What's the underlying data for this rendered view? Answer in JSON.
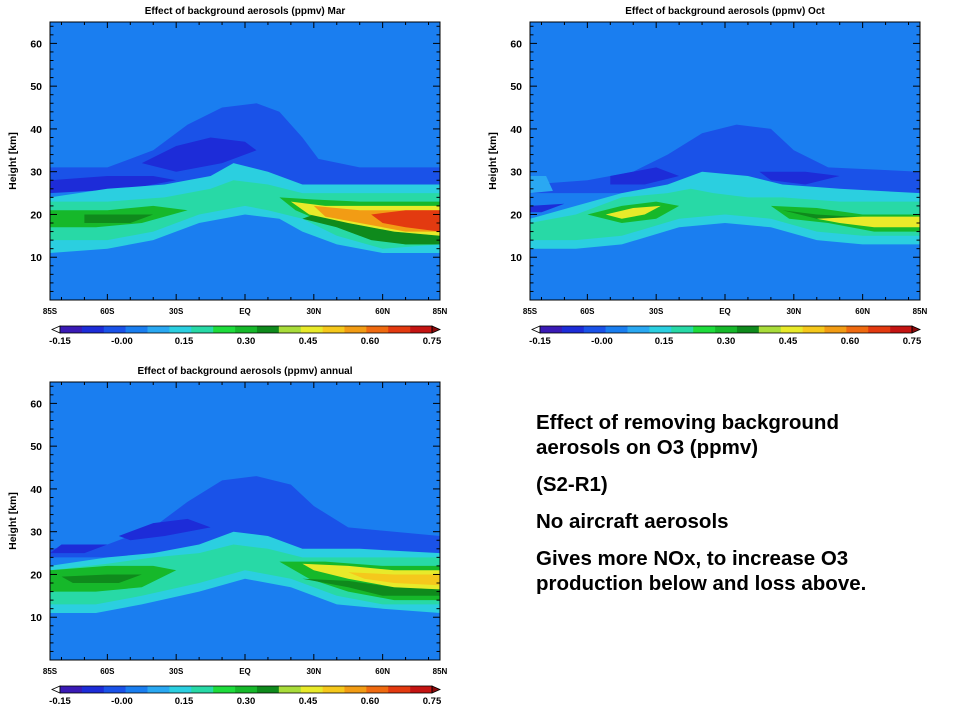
{
  "chart_data": [
    {
      "type": "heatmap",
      "id": "mar",
      "title": "Effect of background aerosols (ppmv) Mar",
      "ylabel": "Height [km]",
      "xlabel": "",
      "x_ticks": [
        "85S",
        "60S",
        "30S",
        "EQ",
        "30N",
        "60N",
        "85N"
      ],
      "y_ticks": [
        "10",
        "20",
        "30",
        "40",
        "50",
        "60"
      ],
      "ylim": [
        0,
        65
      ],
      "xlim": [
        -85,
        85
      ],
      "colorbar": {
        "ticks": [
          "-0.15",
          "-0.00",
          "0.15",
          "0.30",
          "0.45",
          "0.60",
          "0.75"
        ],
        "range": [
          -0.15,
          0.75
        ]
      },
      "features": [
        {
          "region": "upper negative dome",
          "lat": [
            -85,
            85
          ],
          "height": [
            27,
            46
          ],
          "value": -0.05
        },
        {
          "region": "mid-level minimum",
          "lat": [
            -40,
            5
          ],
          "height": [
            30,
            38
          ],
          "value": -0.1
        },
        {
          "region": "southern high-latitude minimum",
          "lat": [
            -85,
            -50
          ],
          "height": [
            22,
            28
          ],
          "value": -0.12
        },
        {
          "region": "lower-stratosphere positive band",
          "lat": [
            -85,
            85
          ],
          "height": [
            10,
            27
          ],
          "value": 0.3
        },
        {
          "region": "northern mid-latitude maximum",
          "lat": [
            30,
            85
          ],
          "height": [
            14,
            24
          ],
          "value": 0.65
        }
      ]
    },
    {
      "type": "heatmap",
      "id": "oct",
      "title": "Effect of background aerosols (ppmv) Oct",
      "ylabel": "Height [km]",
      "xlabel": "",
      "x_ticks": [
        "85S",
        "60S",
        "30S",
        "EQ",
        "30N",
        "60N",
        "85N"
      ],
      "y_ticks": [
        "10",
        "20",
        "30",
        "40",
        "50",
        "60"
      ],
      "ylim": [
        0,
        65
      ],
      "xlim": [
        -85,
        85
      ],
      "colorbar": {
        "ticks": [
          "-0.15",
          "-0.00",
          "0.15",
          "0.30",
          "0.45",
          "0.60",
          "0.75"
        ],
        "range": [
          -0.15,
          0.75
        ]
      },
      "features": [
        {
          "region": "upper negative dome",
          "lat": [
            -60,
            85
          ],
          "height": [
            26,
            41
          ],
          "value": -0.05
        },
        {
          "region": "southern mid-latitude maximum",
          "lat": [
            -60,
            -20
          ],
          "height": [
            16,
            24
          ],
          "value": 0.45
        },
        {
          "region": "northern band",
          "lat": [
            20,
            85
          ],
          "height": [
            14,
            24
          ],
          "value": 0.4
        },
        {
          "region": "lower-stratosphere positive band",
          "lat": [
            -85,
            85
          ],
          "height": [
            11,
            30
          ],
          "value": 0.2
        }
      ]
    },
    {
      "type": "heatmap",
      "id": "annual",
      "title": "Effect of background aerosols (ppmv) annual",
      "ylabel": "Height [km]",
      "xlabel": "",
      "x_ticks": [
        "85S",
        "60S",
        "30S",
        "EQ",
        "30N",
        "60N",
        "85N"
      ],
      "y_ticks": [
        "10",
        "20",
        "30",
        "40",
        "50",
        "60"
      ],
      "ylim": [
        0,
        65
      ],
      "xlim": [
        -85,
        85
      ],
      "colorbar": {
        "ticks": [
          "-0.15",
          "-0.00",
          "0.15",
          "0.30",
          "0.45",
          "0.60",
          "0.75"
        ],
        "range": [
          -0.15,
          0.75
        ]
      },
      "features": [
        {
          "region": "upper negative dome",
          "lat": [
            -85,
            85
          ],
          "height": [
            24,
            43
          ],
          "value": -0.05
        },
        {
          "region": "lower-stratosphere positive band",
          "lat": [
            -85,
            85
          ],
          "height": [
            10,
            28
          ],
          "value": 0.3
        },
        {
          "region": "northern mid-latitude maximum",
          "lat": [
            30,
            85
          ],
          "height": [
            14,
            24
          ],
          "value": 0.5
        }
      ]
    }
  ],
  "note": {
    "line1": "Effect of removing background aerosols on O3 (ppmv)",
    "line2": "(S2-R1)",
    "line3": "No aircraft aerosols",
    "line4": "Gives more NOx, to increase O3 production below and loss above."
  },
  "colors": {
    "background": "#1a7ef0",
    "colorbar": [
      "#ffffff",
      "#3a1ab5",
      "#1d2cd8",
      "#1a52e8",
      "#1a7ef0",
      "#2aa8f2",
      "#2bcfe0",
      "#28d9a6",
      "#1edc3c",
      "#16b82a",
      "#0f8a1c",
      "#a8dc3a",
      "#e8ea2a",
      "#f5c81c",
      "#f29c14",
      "#ef6a10",
      "#e33a10",
      "#c41412",
      "#8a0a0a"
    ]
  }
}
